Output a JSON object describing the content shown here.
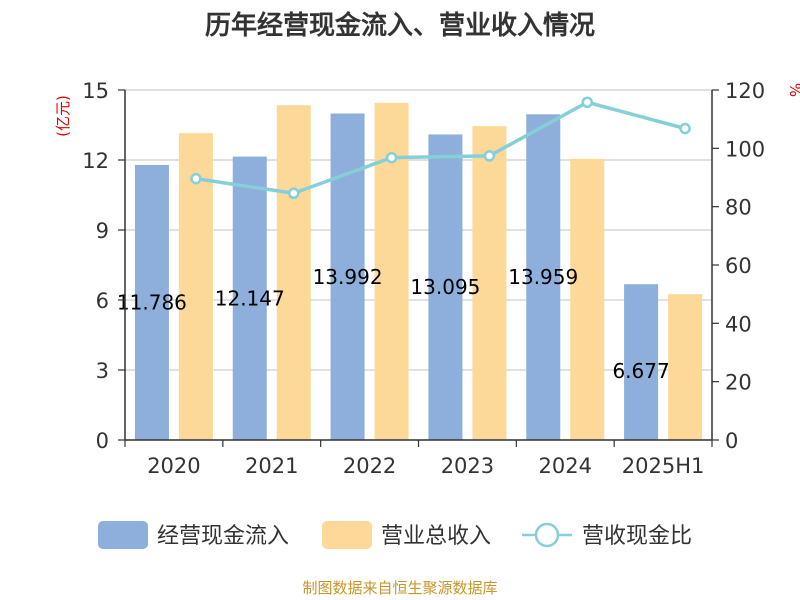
{
  "chart_data": {
    "type": "bar",
    "title": "历年经营现金流入、营业收入情况",
    "categories": [
      "2020",
      "2021",
      "2022",
      "2023",
      "2024",
      "2025H1"
    ],
    "series": [
      {
        "name": "经营现金流入",
        "kind": "bar",
        "axis": "left",
        "color": "#8eaedb",
        "values": [
          11.786,
          12.147,
          13.992,
          13.095,
          13.959,
          6.677
        ],
        "labels": [
          "11.786",
          "12.147",
          "13.992",
          "13.095",
          "13.959",
          "6.677"
        ]
      },
      {
        "name": "营业总收入",
        "kind": "bar",
        "axis": "left",
        "color": "#fdd999",
        "values": [
          13.15,
          14.35,
          14.45,
          13.45,
          12.05,
          6.25
        ]
      },
      {
        "name": "营收现金比",
        "kind": "line",
        "axis": "right",
        "color": "#85d0d8",
        "values": [
          89.6,
          84.6,
          96.8,
          97.4,
          115.8,
          106.8
        ]
      }
    ],
    "left_axis": {
      "unit": "(亿元)",
      "ylim": [
        0,
        15
      ],
      "ticks": [
        "0",
        "3",
        "6",
        "9",
        "12",
        "15"
      ]
    },
    "right_axis": {
      "unit": "%",
      "ylim": [
        0,
        120
      ],
      "ticks": [
        "0",
        "20",
        "40",
        "60",
        "80",
        "100",
        "120"
      ]
    },
    "grid": true,
    "legend_position": "bottom"
  },
  "source": "制图数据来自恒生聚源数据库"
}
